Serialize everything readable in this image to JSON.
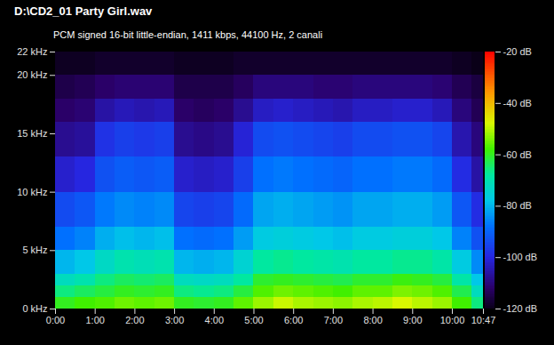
{
  "chart_data": {
    "type": "heatmap",
    "title": "D:\\CD2_01 Party Girl.wav",
    "subtitle": "PCM signed 16-bit little-endian, 1411 kbps, 44100 Hz, 2 canali",
    "x_bins": [
      0,
      30,
      60,
      90,
      120,
      150,
      180,
      210,
      240,
      270,
      300,
      330,
      360,
      390,
      420,
      450,
      480,
      510,
      540,
      570,
      600,
      630,
      647
    ],
    "y_bins": [
      0,
      1,
      2,
      3,
      5,
      7,
      10,
      13,
      16,
      18,
      20,
      22
    ],
    "values": [
      [
        -60,
        -58,
        -57,
        -55,
        -56,
        -55,
        -60,
        -61,
        -60,
        -56,
        -52,
        -49,
        -51,
        -52,
        -53,
        -51,
        -50,
        -48,
        -50,
        -52,
        -58,
        -66
      ],
      [
        -66,
        -64,
        -62,
        -60,
        -61,
        -60,
        -66,
        -67,
        -66,
        -62,
        -57,
        -55,
        -56,
        -57,
        -58,
        -56,
        -56,
        -54,
        -55,
        -57,
        -63,
        -72
      ],
      [
        -72,
        -70,
        -66,
        -64,
        -65,
        -64,
        -72,
        -73,
        -72,
        -68,
        -61,
        -60,
        -61,
        -62,
        -63,
        -61,
        -61,
        -59,
        -60,
        -62,
        -69,
        -78
      ],
      [
        -80,
        -78,
        -73,
        -70,
        -71,
        -70,
        -80,
        -81,
        -80,
        -75,
        -68,
        -67,
        -68,
        -69,
        -70,
        -68,
        -68,
        -67,
        -67,
        -69,
        -77,
        -85
      ],
      [
        -88,
        -86,
        -81,
        -79,
        -80,
        -79,
        -88,
        -89,
        -88,
        -83,
        -77,
        -76,
        -77,
        -78,
        -79,
        -77,
        -77,
        -76,
        -76,
        -78,
        -86,
        -93
      ],
      [
        -94,
        -92,
        -87,
        -85,
        -86,
        -85,
        -95,
        -96,
        -95,
        -89,
        -82,
        -81,
        -82,
        -83,
        -84,
        -82,
        -82,
        -81,
        -81,
        -83,
        -92,
        -99
      ],
      [
        -102,
        -100,
        -93,
        -91,
        -92,
        -91,
        -102,
        -103,
        -102,
        -96,
        -88,
        -87,
        -88,
        -89,
        -90,
        -88,
        -88,
        -87,
        -87,
        -89,
        -99,
        -106
      ],
      [
        -108,
        -107,
        -98,
        -96,
        -97,
        -96,
        -108,
        -109,
        -108,
        -101,
        -94,
        -93,
        -94,
        -95,
        -96,
        -94,
        -94,
        -93,
        -93,
        -95,
        -105,
        -110
      ],
      [
        -112,
        -111,
        -106,
        -104,
        -105,
        -104,
        -112,
        -113,
        -112,
        -108,
        -103,
        -102,
        -103,
        -104,
        -105,
        -103,
        -103,
        -102,
        -102,
        -104,
        -110,
        -114
      ],
      [
        -115,
        -114,
        -112,
        -111,
        -111,
        -111,
        -115,
        -115,
        -115,
        -113,
        -110,
        -110,
        -110,
        -111,
        -111,
        -110,
        -110,
        -110,
        -110,
        -111,
        -114,
        -116
      ],
      [
        -119,
        -119,
        -118,
        -118,
        -118,
        -118,
        -119,
        -119,
        -119,
        -118,
        -118,
        -118,
        -118,
        -118,
        -118,
        -118,
        -118,
        -118,
        -118,
        -118,
        -119,
        -120
      ]
    ],
    "xlim": [
      0,
      647
    ],
    "xticks": [
      {
        "value": 0,
        "label": "0:00"
      },
      {
        "value": 60,
        "label": "1:00"
      },
      {
        "value": 120,
        "label": "2:00"
      },
      {
        "value": 180,
        "label": "3:00"
      },
      {
        "value": 240,
        "label": "4:00"
      },
      {
        "value": 300,
        "label": "5:00"
      },
      {
        "value": 360,
        "label": "6:00"
      },
      {
        "value": 420,
        "label": "7:00"
      },
      {
        "value": 480,
        "label": "8:00"
      },
      {
        "value": 540,
        "label": "9:00"
      },
      {
        "value": 600,
        "label": "10:00"
      },
      {
        "value": 647,
        "label": "10:47"
      }
    ],
    "ylim": [
      0,
      22
    ],
    "yticks": [
      {
        "value": 0,
        "label": "0 kHz"
      },
      {
        "value": 5,
        "label": "5 kHz"
      },
      {
        "value": 10,
        "label": "10 kHz"
      },
      {
        "value": 15,
        "label": "15 kHz"
      },
      {
        "value": 20,
        "label": "20 kHz"
      },
      {
        "value": 22,
        "label": "22 kHz"
      }
    ],
    "colorbar_range": [
      -120,
      -20
    ],
    "colorbar_ticks": [
      {
        "value": -20,
        "label": "-20 dB"
      },
      {
        "value": -40,
        "label": "-40 dB"
      },
      {
        "value": -60,
        "label": "-60 dB"
      },
      {
        "value": -80,
        "label": "-80 dB"
      },
      {
        "value": -100,
        "label": "-100 dB"
      },
      {
        "value": -120,
        "label": "-120 dB"
      }
    ]
  }
}
